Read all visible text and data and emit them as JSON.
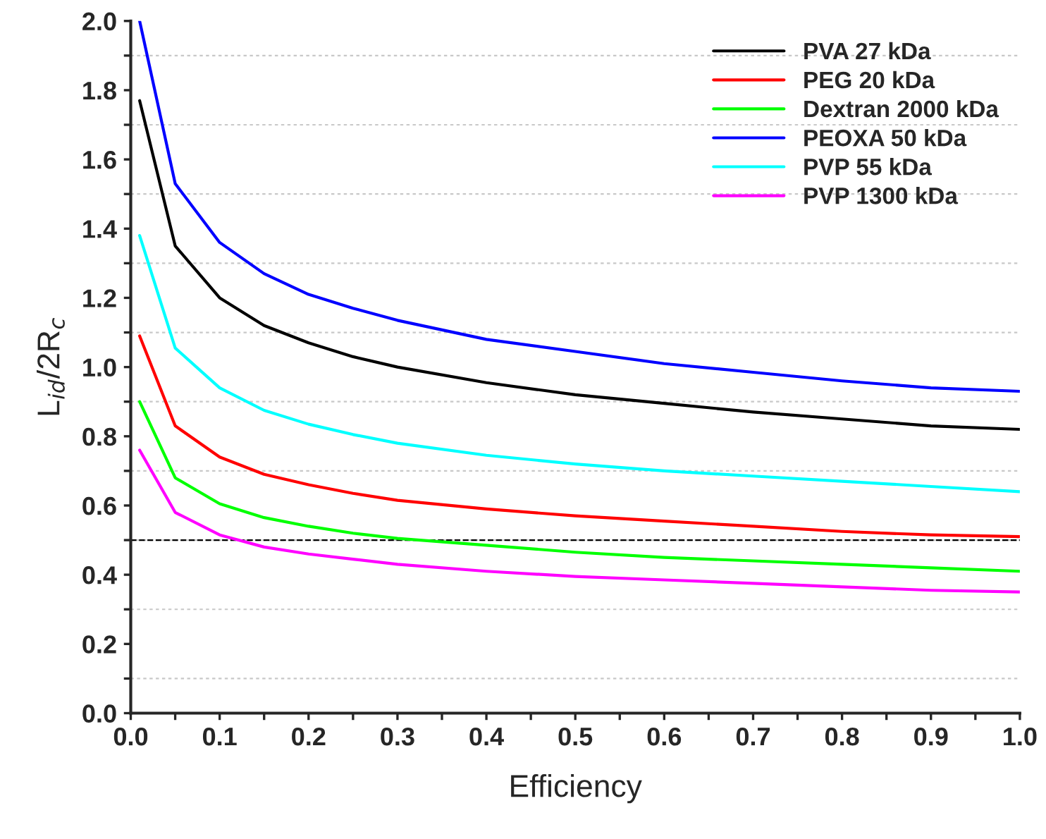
{
  "chart_data": {
    "type": "line",
    "xlabel": "Efficiency",
    "ylabel": "L$_{id}$/2R$_{c}$",
    "x": [
      0.01,
      0.05,
      0.1,
      0.15,
      0.2,
      0.25,
      0.3,
      0.4,
      0.5,
      0.6,
      0.7,
      0.8,
      0.9,
      1.0
    ],
    "series": [
      {
        "name": "PVA 27 kDa",
        "color": "#000000",
        "values": [
          1.77,
          1.35,
          1.2,
          1.12,
          1.07,
          1.03,
          1.0,
          0.955,
          0.92,
          0.895,
          0.87,
          0.85,
          0.83,
          0.82
        ]
      },
      {
        "name": "PEG 20 kDa",
        "color": "#ff0000",
        "values": [
          1.09,
          0.83,
          0.74,
          0.69,
          0.66,
          0.635,
          0.615,
          0.59,
          0.57,
          0.555,
          0.54,
          0.525,
          0.515,
          0.51
        ]
      },
      {
        "name": "Dextran 2000 kDa",
        "color": "#00ff00",
        "values": [
          0.9,
          0.68,
          0.605,
          0.565,
          0.54,
          0.52,
          0.505,
          0.485,
          0.465,
          0.45,
          0.44,
          0.43,
          0.42,
          0.41
        ]
      },
      {
        "name": "PEOXA 50 kDa",
        "color": "#0000ff",
        "values": [
          2.0,
          1.53,
          1.36,
          1.27,
          1.21,
          1.17,
          1.135,
          1.08,
          1.045,
          1.01,
          0.985,
          0.96,
          0.94,
          0.93
        ]
      },
      {
        "name": "PVP 55 kDa",
        "color": "#00ffff",
        "values": [
          1.38,
          1.055,
          0.94,
          0.875,
          0.835,
          0.805,
          0.78,
          0.745,
          0.72,
          0.7,
          0.685,
          0.67,
          0.655,
          0.64
        ]
      },
      {
        "name": "PVP 1300 kDa",
        "color": "#ff00ff",
        "values": [
          0.76,
          0.58,
          0.515,
          0.48,
          0.46,
          0.445,
          0.43,
          0.41,
          0.395,
          0.385,
          0.375,
          0.365,
          0.355,
          0.35
        ]
      }
    ],
    "xlim": [
      0,
      1
    ],
    "ylim": [
      0,
      2
    ],
    "xticks": [
      "0.0",
      {
        "value": 0.05,
        "label": null
      },
      0.1,
      {
        "value": 0.15,
        "label": null
      },
      0.2,
      {
        "value": 0.25,
        "label": null
      },
      0.3,
      {
        "value": 0.35,
        "label": null
      },
      0.4,
      {
        "value": 0.45,
        "label": null
      },
      0.5,
      {
        "value": 0.55,
        "label": null
      },
      0.6,
      {
        "value": 0.65,
        "label": null
      },
      0.7,
      {
        "value": 0.75,
        "label": null
      },
      0.8,
      {
        "value": 0.85,
        "label": null
      },
      0.9,
      {
        "value": 0.95,
        "label": null
      },
      {
        "value": 1.0,
        "label": "1.0"
      }
    ],
    "yticks": [
      {
        "value": 0,
        "label": "0.0"
      },
      {
        "value": 0.1,
        "label": null
      },
      0.2,
      {
        "value": 0.3,
        "label": null
      },
      0.4,
      {
        "value": 0.5,
        "label": null
      },
      0.6,
      {
        "value": 0.7,
        "label": null
      },
      0.8,
      {
        "value": 0.9,
        "label": null
      },
      {
        "value": 1.0,
        "label": "1.0"
      },
      {
        "value": 1.1,
        "label": null
      },
      1.2,
      {
        "value": 1.3,
        "label": null
      },
      1.4,
      {
        "value": 1.5,
        "label": null
      },
      1.6,
      {
        "value": 1.7,
        "label": null
      },
      1.8,
      {
        "value": 1.9,
        "label": null
      },
      {
        "value": 2.0,
        "label": "2.0"
      }
    ],
    "grid": "y",
    "ref_lines": [
      {
        "axis": "y",
        "value": 0.5,
        "color": "#000000",
        "line_style": "dashed"
      }
    ],
    "legend": "top right",
    "marker": "none",
    "line_style": "solid"
  }
}
